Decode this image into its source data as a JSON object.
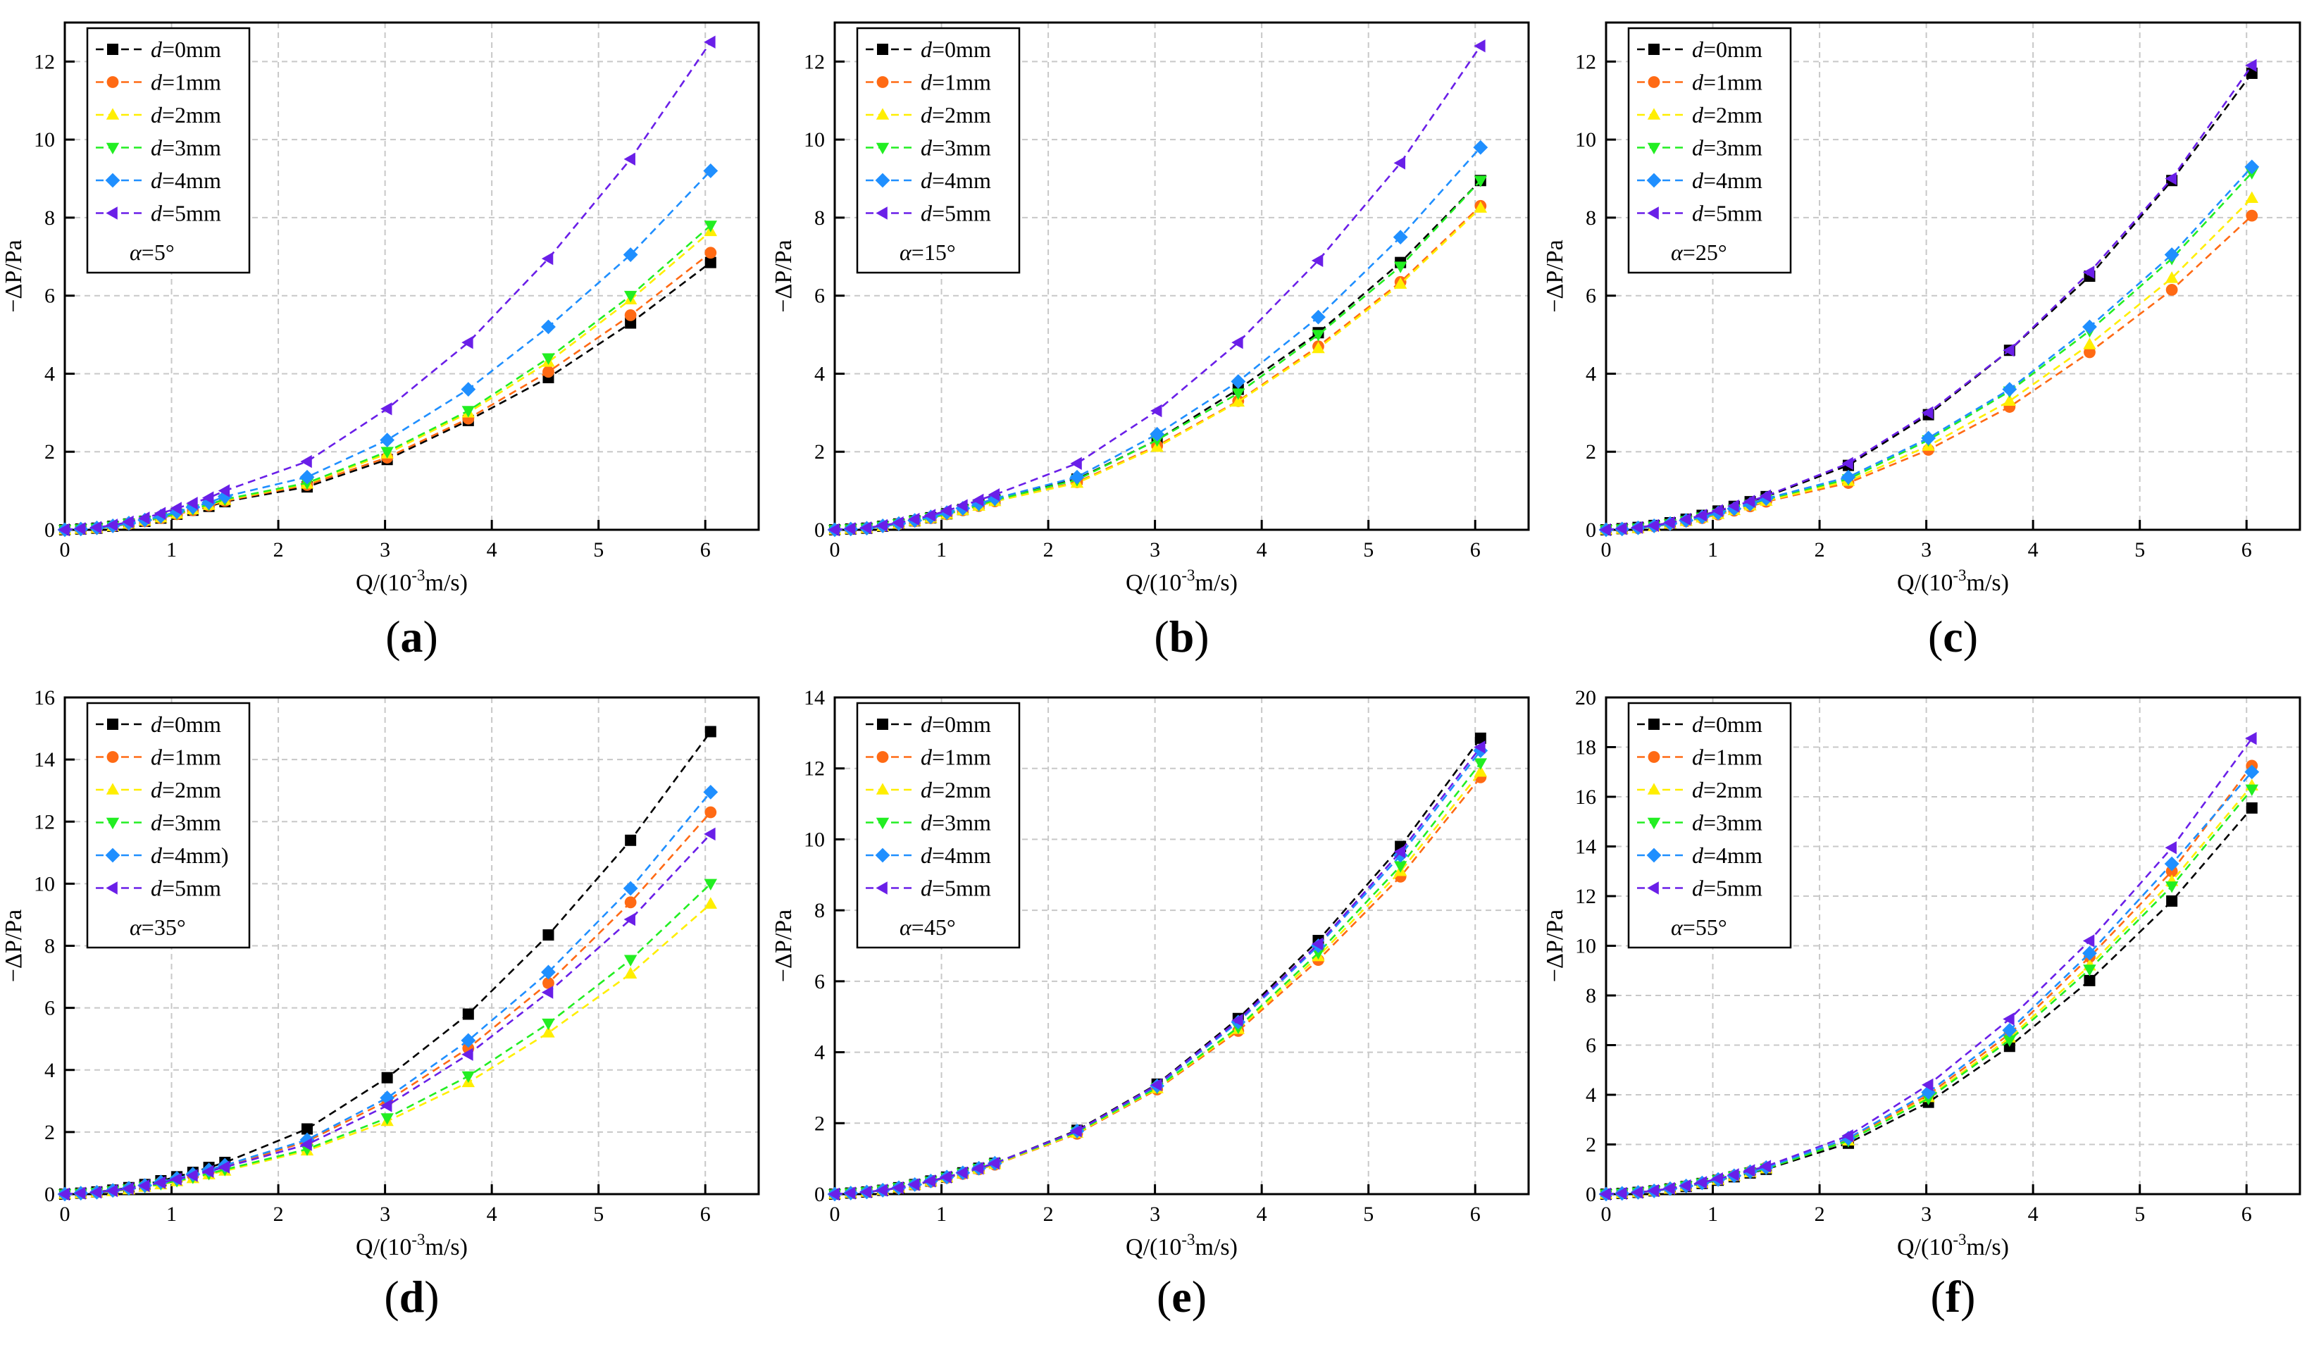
{
  "colors": {
    "d0": "#000000",
    "d1": "#ff6a14",
    "d2": "#ffee00",
    "d3": "#22ee22",
    "d4": "#1f8fff",
    "d5": "#6a1fe8",
    "grid": "#c8c8c8",
    "axis": "#000000"
  },
  "chart_data": [
    {
      "type": "line",
      "panel_label": "a",
      "angle_label": "α=5°",
      "xlabel": "Q/(10",
      "xlabel_sup": "-3",
      "xlabel_tail": "m/s)",
      "ylabel": "−ΔP/Pa",
      "xlim": [
        0,
        6.5
      ],
      "ylim": [
        0,
        13
      ],
      "xticks": [
        0,
        1,
        2,
        3,
        4,
        5,
        6
      ],
      "yticks": [
        0,
        2,
        4,
        6,
        8,
        10,
        12
      ],
      "x": [
        0,
        0.15,
        0.3,
        0.45,
        0.6,
        0.75,
        0.9,
        1.05,
        1.2,
        1.35,
        1.5,
        2.27,
        3.02,
        3.78,
        4.53,
        5.3,
        6.05
      ],
      "series": [
        {
          "name": "d=0mm",
          "marker": "square",
          "values": [
            0,
            0.02,
            0.04,
            0.09,
            0.15,
            0.22,
            0.3,
            0.4,
            0.5,
            0.6,
            0.72,
            1.1,
            1.8,
            2.8,
            3.9,
            5.3,
            6.85
          ]
        },
        {
          "name": "d=1mm",
          "marker": "circle",
          "values": [
            0,
            0.02,
            0.04,
            0.09,
            0.15,
            0.22,
            0.3,
            0.4,
            0.5,
            0.62,
            0.74,
            1.15,
            1.85,
            2.85,
            4.05,
            5.5,
            7.1
          ]
        },
        {
          "name": "d=2mm",
          "marker": "triangle-up",
          "values": [
            0,
            0.02,
            0.04,
            0.09,
            0.15,
            0.23,
            0.31,
            0.41,
            0.52,
            0.63,
            0.76,
            1.18,
            1.95,
            3.0,
            4.3,
            5.9,
            7.65
          ]
        },
        {
          "name": "d=3mm",
          "marker": "triangle-down",
          "values": [
            0,
            0.02,
            0.04,
            0.09,
            0.16,
            0.23,
            0.32,
            0.42,
            0.53,
            0.65,
            0.78,
            1.2,
            2.0,
            3.05,
            4.4,
            6.0,
            7.8
          ]
        },
        {
          "name": "d=4mm",
          "marker": "diamond",
          "values": [
            0,
            0.02,
            0.05,
            0.1,
            0.17,
            0.25,
            0.35,
            0.46,
            0.58,
            0.7,
            0.85,
            1.35,
            2.3,
            3.6,
            5.2,
            7.05,
            9.2
          ]
        },
        {
          "name": "d=5mm",
          "marker": "triangle-left",
          "values": [
            0,
            0.03,
            0.06,
            0.12,
            0.2,
            0.3,
            0.42,
            0.55,
            0.68,
            0.82,
            1.0,
            1.75,
            3.1,
            4.8,
            6.95,
            9.5,
            12.5
          ]
        }
      ]
    },
    {
      "type": "line",
      "panel_label": "b",
      "angle_label": "α=15°",
      "xlabel": "Q/(10",
      "xlabel_sup": "-3",
      "xlabel_tail": "m/s)",
      "ylabel": "−ΔP/Pa",
      "xlim": [
        0,
        6.5
      ],
      "ylim": [
        0,
        13
      ],
      "xticks": [
        0,
        1,
        2,
        3,
        4,
        5,
        6
      ],
      "yticks": [
        0,
        2,
        4,
        6,
        8,
        10,
        12
      ],
      "x": [
        0,
        0.15,
        0.3,
        0.45,
        0.6,
        0.75,
        0.9,
        1.05,
        1.2,
        1.35,
        1.5,
        2.27,
        3.02,
        3.78,
        4.53,
        5.3,
        6.05
      ],
      "series": [
        {
          "name": "d=0mm",
          "marker": "square",
          "values": [
            0,
            0.02,
            0.04,
            0.09,
            0.15,
            0.23,
            0.31,
            0.41,
            0.52,
            0.64,
            0.77,
            1.3,
            2.3,
            3.6,
            5.05,
            6.85,
            8.95
          ]
        },
        {
          "name": "d=1mm",
          "marker": "circle",
          "values": [
            0,
            0.02,
            0.04,
            0.09,
            0.15,
            0.22,
            0.3,
            0.4,
            0.5,
            0.61,
            0.73,
            1.22,
            2.15,
            3.3,
            4.7,
            6.35,
            8.3
          ]
        },
        {
          "name": "d=2mm",
          "marker": "triangle-up",
          "values": [
            0,
            0.02,
            0.04,
            0.09,
            0.15,
            0.22,
            0.3,
            0.4,
            0.5,
            0.61,
            0.73,
            1.2,
            2.12,
            3.28,
            4.65,
            6.3,
            8.25
          ]
        },
        {
          "name": "d=3mm",
          "marker": "triangle-down",
          "values": [
            0,
            0.02,
            0.04,
            0.09,
            0.15,
            0.23,
            0.31,
            0.41,
            0.52,
            0.63,
            0.76,
            1.28,
            2.3,
            3.5,
            5.0,
            6.75,
            8.95
          ]
        },
        {
          "name": "d=4mm",
          "marker": "diamond",
          "values": [
            0,
            0.02,
            0.04,
            0.1,
            0.16,
            0.24,
            0.33,
            0.44,
            0.55,
            0.67,
            0.8,
            1.35,
            2.45,
            3.8,
            5.45,
            7.5,
            9.8
          ]
        },
        {
          "name": "d=5mm",
          "marker": "triangle-left",
          "values": [
            0,
            0.03,
            0.05,
            0.11,
            0.18,
            0.27,
            0.37,
            0.49,
            0.62,
            0.76,
            0.9,
            1.7,
            3.05,
            4.8,
            6.9,
            9.4,
            12.4
          ]
        }
      ]
    },
    {
      "type": "line",
      "panel_label": "c",
      "angle_label": "α=25°",
      "xlabel": "Q/(10",
      "xlabel_sup": "-3",
      "xlabel_tail": "m/s)",
      "ylabel": "−ΔP/Pa",
      "xlim": [
        0,
        6.5
      ],
      "ylim": [
        0,
        13
      ],
      "xticks": [
        0,
        1,
        2,
        3,
        4,
        5,
        6
      ],
      "yticks": [
        0,
        2,
        4,
        6,
        8,
        10,
        12
      ],
      "x": [
        0,
        0.15,
        0.3,
        0.45,
        0.6,
        0.75,
        0.9,
        1.05,
        1.2,
        1.35,
        1.5,
        2.27,
        3.02,
        3.78,
        4.53,
        5.3,
        6.05
      ],
      "series": [
        {
          "name": "d=0mm",
          "marker": "square",
          "values": [
            0,
            0.03,
            0.06,
            0.11,
            0.18,
            0.27,
            0.37,
            0.48,
            0.6,
            0.72,
            0.85,
            1.65,
            2.95,
            4.6,
            6.5,
            8.95,
            11.7
          ]
        },
        {
          "name": "d=1mm",
          "marker": "circle",
          "values": [
            0,
            0.02,
            0.04,
            0.09,
            0.15,
            0.22,
            0.3,
            0.39,
            0.49,
            0.6,
            0.72,
            1.2,
            2.05,
            3.15,
            4.55,
            6.15,
            8.05
          ]
        },
        {
          "name": "d=2mm",
          "marker": "triangle-up",
          "values": [
            0,
            0.02,
            0.04,
            0.09,
            0.15,
            0.22,
            0.31,
            0.4,
            0.5,
            0.62,
            0.74,
            1.25,
            2.15,
            3.3,
            4.75,
            6.45,
            8.5
          ]
        },
        {
          "name": "d=3mm",
          "marker": "triangle-down",
          "values": [
            0,
            0.02,
            0.04,
            0.09,
            0.15,
            0.23,
            0.32,
            0.42,
            0.53,
            0.65,
            0.78,
            1.3,
            2.3,
            3.55,
            5.1,
            6.95,
            9.15
          ]
        },
        {
          "name": "d=4mm",
          "marker": "diamond",
          "values": [
            0,
            0.02,
            0.05,
            0.1,
            0.16,
            0.24,
            0.33,
            0.43,
            0.54,
            0.66,
            0.8,
            1.35,
            2.35,
            3.6,
            5.2,
            7.05,
            9.3
          ]
        },
        {
          "name": "d=5mm",
          "marker": "triangle-left",
          "values": [
            0,
            0.03,
            0.06,
            0.11,
            0.18,
            0.27,
            0.37,
            0.49,
            0.61,
            0.73,
            0.87,
            1.7,
            3.0,
            4.6,
            6.6,
            9.0,
            11.9
          ]
        }
      ]
    },
    {
      "type": "line",
      "panel_label": "d",
      "angle_label": "α=35°",
      "xlabel": "Q/(10",
      "xlabel_sup": "-3",
      "xlabel_tail": "m/s)",
      "ylabel": "−ΔP/Pa",
      "xlim": [
        0,
        6.5
      ],
      "ylim": [
        0,
        16
      ],
      "xticks": [
        0,
        1,
        2,
        3,
        4,
        5,
        6
      ],
      "yticks": [
        0,
        2,
        4,
        6,
        8,
        10,
        12,
        14,
        16
      ],
      "x": [
        0,
        0.15,
        0.3,
        0.45,
        0.6,
        0.75,
        0.9,
        1.05,
        1.2,
        1.35,
        1.5,
        2.27,
        3.02,
        3.78,
        4.53,
        5.3,
        6.05
      ],
      "series": [
        {
          "name": "d=0mm",
          "marker": "square",
          "values": [
            0,
            0.03,
            0.07,
            0.13,
            0.21,
            0.31,
            0.43,
            0.56,
            0.7,
            0.86,
            1.02,
            2.1,
            3.75,
            5.8,
            8.35,
            11.4,
            14.9
          ]
        },
        {
          "name": "d=1mm",
          "marker": "circle",
          "values": [
            0,
            0.03,
            0.06,
            0.11,
            0.18,
            0.27,
            0.37,
            0.48,
            0.6,
            0.74,
            0.88,
            1.7,
            3.0,
            4.7,
            6.8,
            9.4,
            12.3
          ]
        },
        {
          "name": "d=2mm",
          "marker": "triangle-up",
          "values": [
            0,
            0.02,
            0.05,
            0.09,
            0.15,
            0.23,
            0.31,
            0.41,
            0.51,
            0.63,
            0.75,
            1.4,
            2.35,
            3.6,
            5.2,
            7.1,
            9.35
          ]
        },
        {
          "name": "d=3mm",
          "marker": "triangle-down",
          "values": [
            0,
            0.02,
            0.05,
            0.1,
            0.16,
            0.24,
            0.33,
            0.43,
            0.54,
            0.66,
            0.79,
            1.45,
            2.45,
            3.8,
            5.5,
            7.55,
            10.0
          ]
        },
        {
          "name": "d=4mm)",
          "marker": "diamond",
          "values": [
            0,
            0.03,
            0.06,
            0.12,
            0.19,
            0.28,
            0.39,
            0.51,
            0.64,
            0.78,
            0.93,
            1.75,
            3.1,
            4.95,
            7.15,
            9.85,
            12.95
          ]
        },
        {
          "name": "d=5mm",
          "marker": "triangle-left",
          "values": [
            0,
            0.03,
            0.06,
            0.11,
            0.18,
            0.27,
            0.37,
            0.48,
            0.6,
            0.73,
            0.87,
            1.6,
            2.85,
            4.5,
            6.5,
            8.85,
            11.6
          ]
        }
      ]
    },
    {
      "type": "line",
      "panel_label": "e",
      "angle_label": "α=45°",
      "xlabel": "Q/(10",
      "xlabel_sup": "-3",
      "xlabel_tail": "m/s)",
      "ylabel": "−ΔP/Pa",
      "xlim": [
        0,
        6.5
      ],
      "ylim": [
        0,
        14
      ],
      "xticks": [
        0,
        1,
        2,
        3,
        4,
        5,
        6
      ],
      "yticks": [
        0,
        2,
        4,
        6,
        8,
        10,
        12,
        14
      ],
      "x": [
        0,
        0.15,
        0.3,
        0.45,
        0.6,
        0.75,
        0.9,
        1.05,
        1.2,
        1.35,
        1.5,
        2.27,
        3.02,
        3.78,
        4.53,
        5.3,
        6.05
      ],
      "series": [
        {
          "name": "d=0mm",
          "marker": "square",
          "values": [
            0,
            0.03,
            0.06,
            0.11,
            0.18,
            0.27,
            0.37,
            0.48,
            0.6,
            0.73,
            0.87,
            1.8,
            3.1,
            4.95,
            7.15,
            9.8,
            12.85
          ]
        },
        {
          "name": "d=1mm",
          "marker": "circle",
          "values": [
            0,
            0.03,
            0.06,
            0.11,
            0.17,
            0.26,
            0.35,
            0.46,
            0.57,
            0.7,
            0.83,
            1.7,
            2.95,
            4.6,
            6.6,
            8.95,
            11.75
          ]
        },
        {
          "name": "d=2mm",
          "marker": "triangle-up",
          "values": [
            0,
            0.03,
            0.06,
            0.11,
            0.18,
            0.26,
            0.36,
            0.47,
            0.58,
            0.71,
            0.84,
            1.72,
            2.98,
            4.65,
            6.7,
            9.1,
            11.9
          ]
        },
        {
          "name": "d=3mm",
          "marker": "triangle-down",
          "values": [
            0,
            0.03,
            0.06,
            0.11,
            0.18,
            0.27,
            0.36,
            0.47,
            0.59,
            0.72,
            0.86,
            1.75,
            3.0,
            4.7,
            6.8,
            9.25,
            12.15
          ]
        },
        {
          "name": "d=4mm",
          "marker": "diamond",
          "values": [
            0,
            0.03,
            0.06,
            0.11,
            0.18,
            0.27,
            0.37,
            0.48,
            0.6,
            0.73,
            0.87,
            1.78,
            3.05,
            4.85,
            7.0,
            9.55,
            12.5
          ]
        },
        {
          "name": "d=5mm",
          "marker": "triangle-left",
          "values": [
            0,
            0.03,
            0.06,
            0.11,
            0.18,
            0.27,
            0.37,
            0.48,
            0.6,
            0.73,
            0.87,
            1.78,
            3.08,
            4.9,
            7.05,
            9.65,
            12.6
          ]
        }
      ]
    },
    {
      "type": "line",
      "panel_label": "f",
      "angle_label": "α=55°",
      "xlabel": "Q/(10",
      "xlabel_sup": "-3",
      "xlabel_tail": "m/s)",
      "ylabel": "−ΔP/Pa",
      "xlim": [
        0,
        6.5
      ],
      "ylim": [
        0,
        20
      ],
      "xticks": [
        0,
        1,
        2,
        3,
        4,
        5,
        6
      ],
      "yticks": [
        0,
        2,
        4,
        6,
        8,
        10,
        12,
        14,
        16,
        18,
        20
      ],
      "x": [
        0,
        0.15,
        0.3,
        0.45,
        0.6,
        0.75,
        0.9,
        1.05,
        1.2,
        1.35,
        1.5,
        2.27,
        3.02,
        3.78,
        4.53,
        5.3,
        6.05
      ],
      "series": [
        {
          "name": "d=0mm",
          "marker": "square",
          "values": [
            0,
            0.03,
            0.07,
            0.13,
            0.21,
            0.31,
            0.43,
            0.56,
            0.7,
            0.85,
            1.0,
            2.05,
            3.7,
            5.95,
            8.6,
            11.8,
            15.55
          ]
        },
        {
          "name": "d=1mm",
          "marker": "circle",
          "values": [
            0,
            0.03,
            0.07,
            0.13,
            0.22,
            0.33,
            0.45,
            0.59,
            0.74,
            0.9,
            1.07,
            2.2,
            4.0,
            6.45,
            9.55,
            13.0,
            17.25
          ]
        },
        {
          "name": "d=2mm",
          "marker": "triangle-up",
          "values": [
            0,
            0.03,
            0.07,
            0.13,
            0.21,
            0.32,
            0.44,
            0.57,
            0.72,
            0.87,
            1.03,
            2.15,
            3.9,
            6.3,
            9.2,
            12.6,
            16.45
          ]
        },
        {
          "name": "d=3mm",
          "marker": "triangle-down",
          "values": [
            0,
            0.03,
            0.07,
            0.13,
            0.21,
            0.32,
            0.44,
            0.57,
            0.72,
            0.87,
            1.03,
            2.15,
            3.85,
            6.2,
            9.05,
            12.4,
            16.3
          ]
        },
        {
          "name": "d=4mm",
          "marker": "diamond",
          "values": [
            0,
            0.03,
            0.07,
            0.13,
            0.22,
            0.33,
            0.45,
            0.59,
            0.74,
            0.9,
            1.07,
            2.25,
            4.1,
            6.6,
            9.7,
            13.3,
            17.0
          ]
        },
        {
          "name": "d=5mm",
          "marker": "triangle-left",
          "values": [
            0,
            0.03,
            0.07,
            0.14,
            0.23,
            0.34,
            0.47,
            0.62,
            0.78,
            0.95,
            1.12,
            2.35,
            4.4,
            7.05,
            10.2,
            13.95,
            18.35
          ]
        }
      ]
    }
  ]
}
